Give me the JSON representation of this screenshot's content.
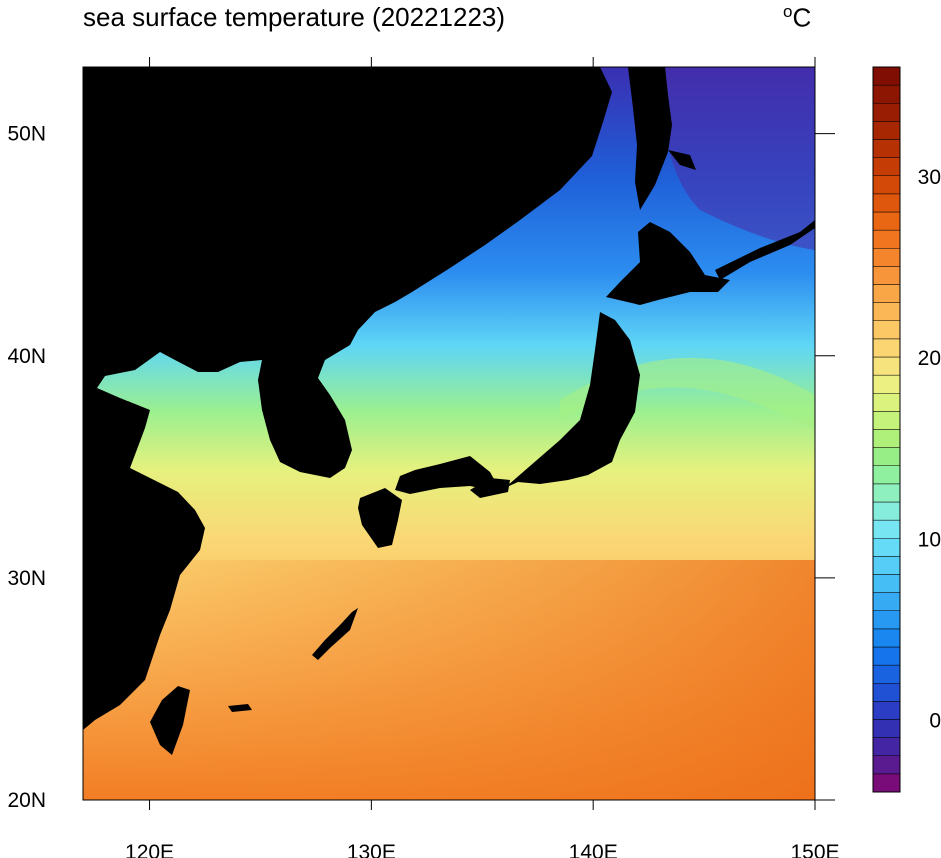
{
  "title": "sea surface temperature (20221223)",
  "units": {
    "symbol": "o",
    "letter": "C"
  },
  "map": {
    "lon_range": [
      117,
      150
    ],
    "lat_range": [
      20,
      53
    ],
    "lon_ticks": [
      {
        "value": 120,
        "label": "120E"
      },
      {
        "value": 130,
        "label": "130E"
      },
      {
        "value": 140,
        "label": "140E"
      },
      {
        "value": 150,
        "label": "150E"
      }
    ],
    "lat_ticks": [
      {
        "value": 20,
        "label": "20N"
      },
      {
        "value": 30,
        "label": "30N"
      },
      {
        "value": 40,
        "label": "40N"
      },
      {
        "value": 50,
        "label": "50N"
      }
    ],
    "land_color": "#000000"
  },
  "colorbar": {
    "range": [
      -4,
      36
    ],
    "levels": 40,
    "ticks": [
      {
        "value": 0,
        "label": "0"
      },
      {
        "value": 10,
        "label": "10"
      },
      {
        "value": 20,
        "label": "20"
      },
      {
        "value": 30,
        "label": "30"
      }
    ],
    "colors": [
      "#7a0c7a",
      "#5a1a90",
      "#4425a3",
      "#3330b3",
      "#2a3dc4",
      "#2050d4",
      "#1a63e0",
      "#1574eb",
      "#1a86f0",
      "#2799f2",
      "#36abf3",
      "#45bdf5",
      "#55cdf7",
      "#66dbf8",
      "#78e6f2",
      "#86ecdc",
      "#8ff0bf",
      "#8ff0a0",
      "#98ee86",
      "#aef07a",
      "#c5f27a",
      "#dcf27e",
      "#ecef82",
      "#f7e37e",
      "#fbd572",
      "#fcc765",
      "#fbb656",
      "#f9a647",
      "#f7953a",
      "#f4852c",
      "#f0751e",
      "#e96613",
      "#df570c",
      "#d34908",
      "#c53c05",
      "#b63104",
      "#a72703",
      "#981d02",
      "#8c1602",
      "#800e02"
    ]
  }
}
